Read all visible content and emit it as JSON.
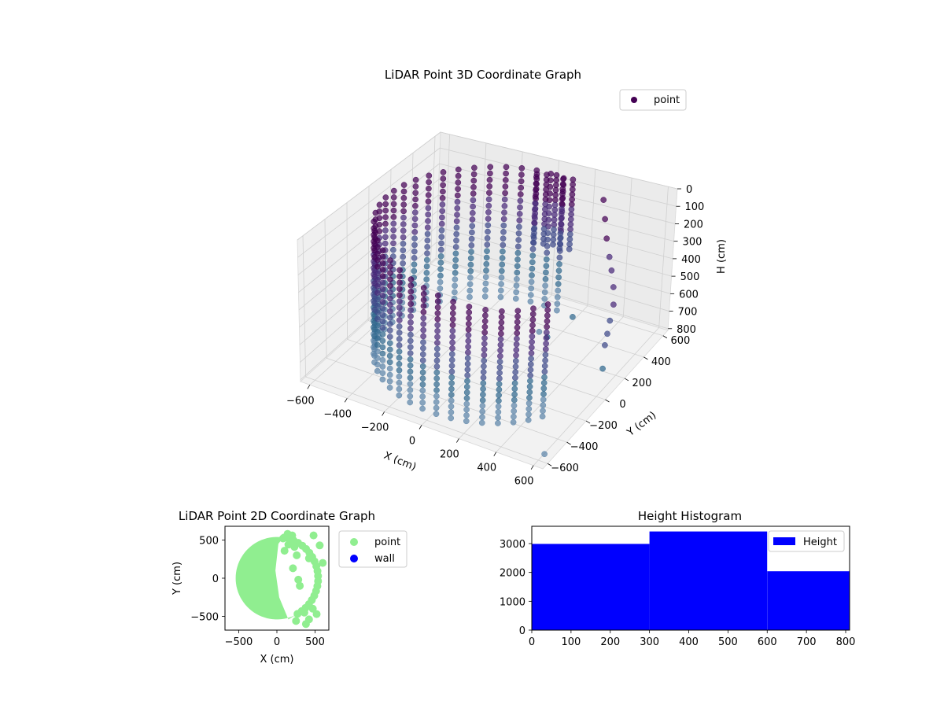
{
  "colors": {
    "point_cmap": [
      "#440154",
      "#482878",
      "#3e4a89",
      "#31688e",
      "#5b84a8"
    ],
    "point_2d": "#90ee90",
    "wall": "#0000ff",
    "hist_bar": "#0000ff"
  },
  "chart_data": [
    {
      "type": "scatter",
      "title": "LiDAR Point 3D Coordinate Graph",
      "xlabel": "X (cm)",
      "ylabel": "Y (cm)",
      "zlabel": "H (cm)",
      "x_ticks": [
        "−600",
        "−400",
        "−200",
        "0",
        "200",
        "400",
        "600"
      ],
      "y_ticks": [
        "−600",
        "−400",
        "−200",
        "0",
        "200",
        "400",
        "600"
      ],
      "z_ticks": [
        "0",
        "100",
        "200",
        "300",
        "400",
        "500",
        "600",
        "700",
        "800"
      ],
      "xlim": [
        -650,
        650
      ],
      "ylim": [
        -650,
        650
      ],
      "zlim": [
        0,
        810
      ],
      "z_inverted": true,
      "legend": [
        {
          "label": "point"
        }
      ],
      "legend_position": "top-right",
      "grid": true,
      "series": [
        {
          "name": "point",
          "shape": "partial cylinder",
          "radius": 540,
          "arc_deg": [
            80,
            330
          ],
          "h_range": [
            0,
            800
          ]
        }
      ]
    },
    {
      "type": "scatter",
      "title": "LiDAR Point 2D Coordinate Graph",
      "xlabel": "X (cm)",
      "ylabel": "Y (cm)",
      "x_ticks": [
        "−500",
        "0",
        "500"
      ],
      "y_ticks": [
        "−500",
        "0",
        "500"
      ],
      "xlim": [
        -680,
        680
      ],
      "ylim": [
        -680,
        680
      ],
      "legend": [
        {
          "label": "point"
        },
        {
          "label": "wall"
        }
      ],
      "legend_position": "outside right",
      "series": [
        {
          "name": "point",
          "shape": "filled region",
          "radius": 540
        },
        {
          "name": "wall",
          "points": []
        }
      ]
    },
    {
      "type": "bar",
      "title": "Height Histogram",
      "x_ticks": [
        "0",
        "100",
        "200",
        "300",
        "400",
        "500",
        "600",
        "700",
        "800"
      ],
      "y_ticks": [
        "0",
        "1000",
        "2000",
        "3000"
      ],
      "xlim": [
        0,
        810
      ],
      "ylim": [
        0,
        3600
      ],
      "legend": [
        {
          "label": "Height"
        }
      ],
      "legend_position": "top-right",
      "bins": [
        {
          "x0": 0,
          "x1": 300,
          "count": 2990
        },
        {
          "x0": 300,
          "x1": 600,
          "count": 3420
        },
        {
          "x0": 600,
          "x1": 810,
          "count": 2040
        }
      ]
    }
  ]
}
